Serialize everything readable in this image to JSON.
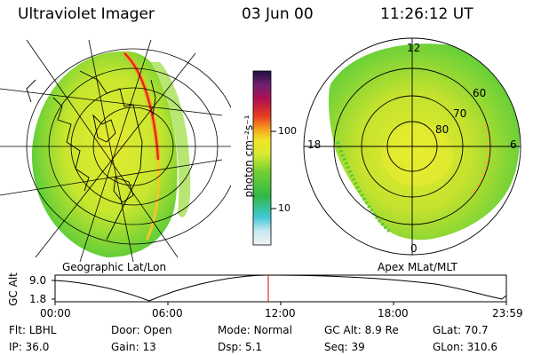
{
  "header": {
    "instrument": "Ultraviolet Imager",
    "date": "03 Jun 00",
    "time": "11:26:12 UT"
  },
  "left_panel": {
    "caption": "Geographic Lat/Lon"
  },
  "right_panel": {
    "caption": "Apex MLat/MLT",
    "mlt_labels": [
      "12",
      "18",
      "6",
      "0"
    ],
    "lat_labels": [
      "60",
      "70",
      "80"
    ]
  },
  "colorbar": {
    "unit_label": "photon cm⁻²s⁻¹",
    "tick_labels": [
      "100",
      "10"
    ]
  },
  "altitude_plot": {
    "ylabel": "GC Alt",
    "y_ticks": [
      "9.0",
      "1.8"
    ],
    "x_ticks": [
      "00:00",
      "06:00",
      "12:00",
      "18:00",
      "23:59"
    ]
  },
  "status": {
    "row1": [
      {
        "key": "Flt:",
        "value": "LBHL"
      },
      {
        "key": "Door:",
        "value": "Open"
      },
      {
        "key": "Mode:",
        "value": "Normal"
      },
      {
        "key": "GC Alt:",
        "value": "8.9 Re"
      },
      {
        "key": "GLat:",
        "value": "70.7"
      }
    ],
    "row2": [
      {
        "key": "IP:",
        "value": "36.0"
      },
      {
        "key": "Gain:",
        "value": "13"
      },
      {
        "key": "Dsp:",
        "value": "5.1"
      },
      {
        "key": "Seq:",
        "value": "39"
      },
      {
        "key": "GLon:",
        "value": "310.6"
      }
    ]
  },
  "colors": {
    "green": "#4cc83a",
    "yellow": "#e8ec2e",
    "orange": "#f4a024",
    "red": "#d82020",
    "marker": "#e00000"
  }
}
